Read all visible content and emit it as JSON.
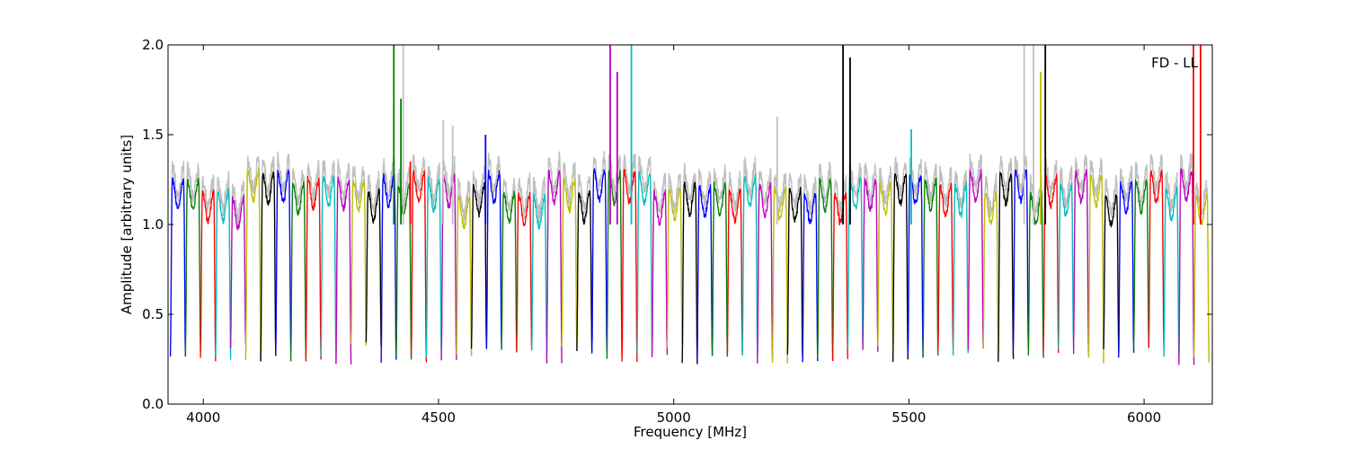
{
  "chart_data": {
    "type": "line",
    "title": "",
    "xlabel": "Frequency [MHz]",
    "ylabel": "Amplitude [arbitrary units]",
    "xlim": [
      3925,
      6145
    ],
    "ylim": [
      0.0,
      2.0
    ],
    "xticks": [
      4000,
      4500,
      5000,
      5500,
      6000
    ],
    "yticks": [
      0.0,
      0.5,
      1.0,
      1.5,
      2.0
    ],
    "xtick_labels": [
      "4000",
      "4500",
      "5000",
      "5500",
      "6000"
    ],
    "ytick_labels": [
      "0.0",
      "0.5",
      "1.0",
      "1.5",
      "2.0"
    ],
    "annotation": "FD - LL",
    "grid": false,
    "legend": "none",
    "series_colors": [
      "#0000ff",
      "#008000",
      "#ff0000",
      "#00bfbf",
      "#bf00bf",
      "#bfbf00",
      "#000000"
    ],
    "background_color": "#c0c0c0",
    "channel_width_mhz": 32,
    "channel_start_mhz": 3930,
    "channel_count": 69,
    "typical_level": 1.2,
    "notch_depth": 0.28,
    "spikes": [
      {
        "x": 4405,
        "y": 2.0,
        "color": "#008000"
      },
      {
        "x": 4420,
        "y": 1.7,
        "color": "#008000"
      },
      {
        "x": 4425,
        "y": 2.0,
        "color": "#c0c0c0"
      },
      {
        "x": 4440,
        "y": 1.35,
        "color": "#ff0000"
      },
      {
        "x": 4510,
        "y": 1.58,
        "color": "#c0c0c0"
      },
      {
        "x": 4530,
        "y": 1.55,
        "color": "#c0c0c0"
      },
      {
        "x": 4600,
        "y": 1.5,
        "color": "#0000ff"
      },
      {
        "x": 4865,
        "y": 2.0,
        "color": "#bf00bf"
      },
      {
        "x": 4880,
        "y": 1.85,
        "color": "#bf00bf"
      },
      {
        "x": 4910,
        "y": 2.0,
        "color": "#00bfbf"
      },
      {
        "x": 5220,
        "y": 1.6,
        "color": "#c0c0c0"
      },
      {
        "x": 5360,
        "y": 2.0,
        "color": "#000000"
      },
      {
        "x": 5375,
        "y": 1.93,
        "color": "#000000"
      },
      {
        "x": 5505,
        "y": 1.53,
        "color": "#00bfbf"
      },
      {
        "x": 5745,
        "y": 2.0,
        "color": "#c0c0c0"
      },
      {
        "x": 5765,
        "y": 2.0,
        "color": "#c0c0c0"
      },
      {
        "x": 5780,
        "y": 1.85,
        "color": "#bfbf00"
      },
      {
        "x": 5790,
        "y": 2.0,
        "color": "#000000"
      },
      {
        "x": 6105,
        "y": 2.0,
        "color": "#ff0000"
      },
      {
        "x": 6120,
        "y": 2.0,
        "color": "#ff0000"
      }
    ]
  }
}
